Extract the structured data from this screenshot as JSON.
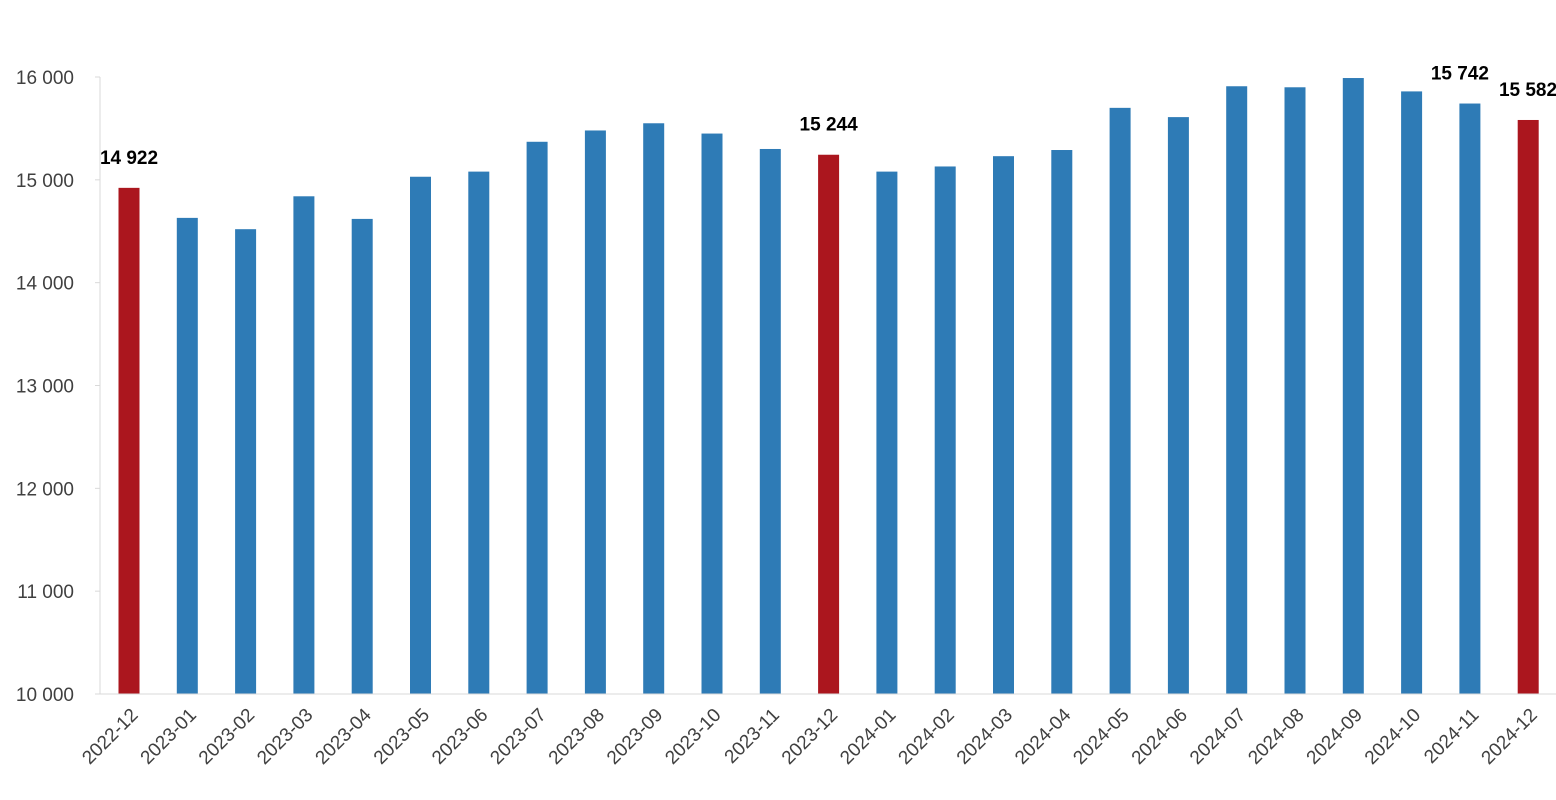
{
  "chart_data": {
    "type": "bar",
    "title": "",
    "xlabel": "",
    "ylabel": "",
    "ylim": [
      10000,
      16000
    ],
    "yticks": [
      10000,
      11000,
      12000,
      13000,
      14000,
      15000,
      16000
    ],
    "ytick_labels": [
      "10 000",
      "11 000",
      "12 000",
      "13 000",
      "14 000",
      "15 000",
      "16 000"
    ],
    "grid": false,
    "legend": "none",
    "categories": [
      "2022-12",
      "2023-01",
      "2023-02",
      "2023-03",
      "2023-04",
      "2023-05",
      "2023-06",
      "2023-07",
      "2023-08",
      "2023-09",
      "2023-10",
      "2023-11",
      "2023-12",
      "2024-01",
      "2024-02",
      "2024-03",
      "2024-04",
      "2024-05",
      "2024-06",
      "2024-07",
      "2024-08",
      "2024-09",
      "2024-10",
      "2024-11",
      "2024-12"
    ],
    "values": [
      14922,
      14630,
      14520,
      14840,
      14620,
      15030,
      15080,
      15370,
      15480,
      15550,
      15450,
      15300,
      15244,
      15080,
      15130,
      15230,
      15290,
      15700,
      15610,
      15910,
      15900,
      15990,
      15860,
      15742,
      15582
    ],
    "highlighted": [
      0,
      12,
      24
    ],
    "data_labels": [
      {
        "index": 0,
        "text": "14 922"
      },
      {
        "index": 12,
        "text": "15 244"
      },
      {
        "index": 23,
        "text": "15 742"
      },
      {
        "index": 24,
        "text": "15 582"
      }
    ],
    "colors": {
      "bar": "#2e7bb6",
      "highlight": "#ab161e"
    }
  }
}
